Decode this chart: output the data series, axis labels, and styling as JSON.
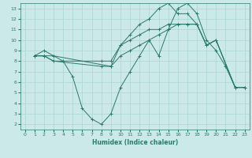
{
  "xlabel": "Humidex (Indice chaleur)",
  "xlim": [
    -0.5,
    23.5
  ],
  "ylim": [
    1.5,
    13.5
  ],
  "xticks": [
    0,
    1,
    2,
    3,
    4,
    5,
    6,
    7,
    8,
    9,
    10,
    11,
    12,
    13,
    14,
    15,
    16,
    17,
    18,
    19,
    20,
    21,
    22,
    23
  ],
  "yticks": [
    2,
    3,
    4,
    5,
    6,
    7,
    8,
    9,
    10,
    11,
    12,
    13
  ],
  "bg_color": "#cce9e9",
  "grid_color": "#aad4d4",
  "line_color": "#2a7a6a",
  "lines": [
    {
      "x": [
        1,
        2,
        3,
        4,
        5,
        6,
        7,
        8,
        9,
        10,
        11,
        12,
        13,
        14,
        15,
        16,
        17,
        18,
        19,
        20,
        21,
        22,
        23
      ],
      "y": [
        8.5,
        9.0,
        8.5,
        8.0,
        6.5,
        3.5,
        2.5,
        2.0,
        3.0,
        5.5,
        7.0,
        8.5,
        10.0,
        8.5,
        11.0,
        13.0,
        13.5,
        12.5,
        10.0,
        9.0,
        7.5,
        5.5,
        5.5
      ]
    },
    {
      "x": [
        1,
        2,
        3,
        9,
        10,
        11,
        12,
        13,
        14,
        15,
        16,
        17,
        18,
        19,
        20,
        22,
        23
      ],
      "y": [
        8.5,
        8.5,
        8.5,
        7.5,
        9.5,
        10.5,
        11.5,
        12.0,
        13.0,
        13.5,
        12.5,
        12.5,
        11.5,
        9.5,
        10.0,
        5.5,
        5.5
      ]
    },
    {
      "x": [
        1,
        2,
        3,
        8,
        9,
        10,
        11,
        12,
        13,
        14,
        15,
        16,
        17,
        18,
        19,
        20,
        22,
        23
      ],
      "y": [
        8.5,
        8.5,
        8.0,
        8.0,
        8.0,
        9.5,
        10.0,
        10.5,
        11.0,
        11.0,
        11.5,
        11.5,
        11.5,
        11.5,
        9.5,
        10.0,
        5.5,
        5.5
      ]
    },
    {
      "x": [
        1,
        2,
        3,
        8,
        9,
        10,
        11,
        12,
        13,
        14,
        15,
        16,
        17,
        18,
        19,
        20,
        22,
        23
      ],
      "y": [
        8.5,
        8.5,
        8.0,
        7.5,
        7.5,
        8.5,
        9.0,
        9.5,
        10.0,
        10.5,
        11.0,
        11.5,
        11.5,
        11.5,
        9.5,
        10.0,
        5.5,
        5.5
      ]
    }
  ]
}
